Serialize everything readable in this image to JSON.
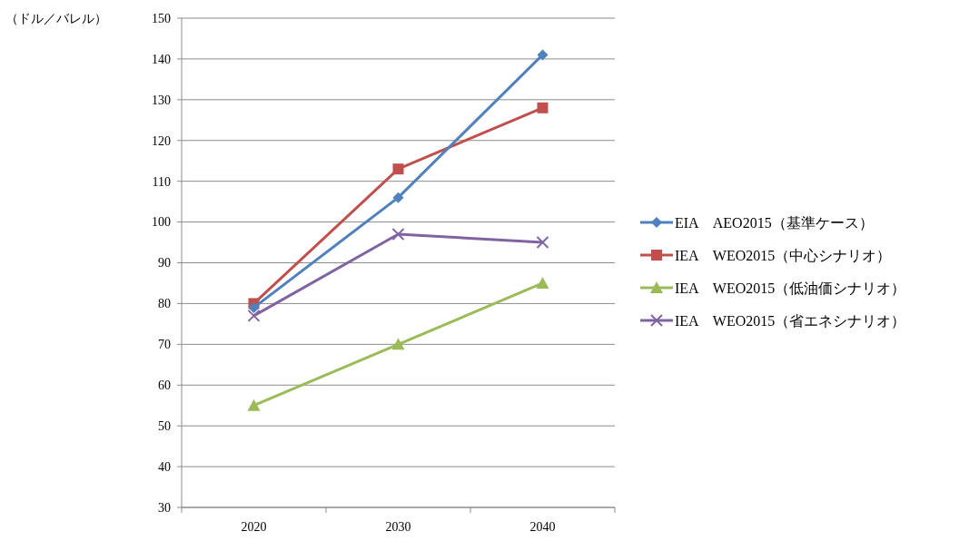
{
  "chart_data": {
    "type": "line",
    "ylabel": "（ドル／バレル）",
    "categories": [
      "2020",
      "2030",
      "2040"
    ],
    "ylim": [
      30,
      150
    ],
    "yticks": [
      30,
      40,
      50,
      60,
      70,
      80,
      90,
      100,
      110,
      120,
      130,
      140,
      150
    ],
    "grid": "y",
    "legend": "right",
    "series": [
      {
        "name": "EIA　AEO2015（基準ケース）",
        "color": "#4f81bd",
        "marker": "diamond",
        "values": [
          79,
          106,
          141
        ]
      },
      {
        "name": "IEA　WEO2015（中心シナリオ）",
        "color": "#c0504d",
        "marker": "square",
        "values": [
          80,
          113,
          128
        ]
      },
      {
        "name": "IEA　WEO2015（低油価シナリオ）",
        "color": "#9bbb59",
        "marker": "triangle",
        "values": [
          55,
          70,
          85
        ]
      },
      {
        "name": "IEA　WEO2015（省エネシナリオ）",
        "color": "#8064a2",
        "marker": "cross",
        "values": [
          77,
          97,
          95
        ]
      }
    ]
  }
}
